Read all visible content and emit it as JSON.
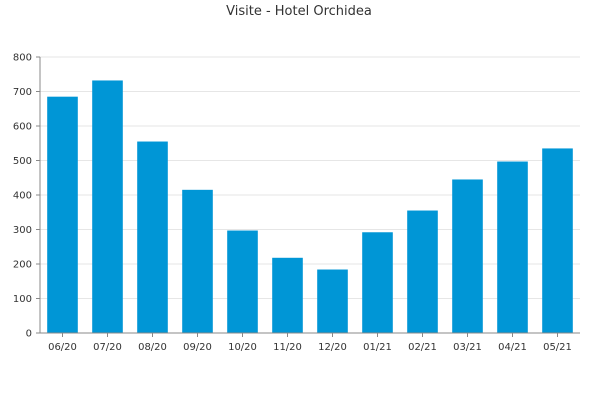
{
  "chart_data": {
    "type": "bar",
    "title": "Visite - Hotel Orchidea",
    "xlabel": "",
    "ylabel": "",
    "categories": [
      "06/20",
      "07/20",
      "08/20",
      "09/20",
      "10/20",
      "11/20",
      "12/20",
      "01/21",
      "02/21",
      "03/21",
      "04/21",
      "05/21"
    ],
    "values": [
      685,
      732,
      555,
      415,
      297,
      218,
      184,
      292,
      355,
      445,
      497,
      535
    ],
    "ylim": [
      0,
      800
    ],
    "yticks": [
      0,
      100,
      200,
      300,
      400,
      500,
      600,
      700,
      800
    ],
    "grid": true,
    "legend": "none"
  },
  "colors": {
    "bar": "#0096d6",
    "grid": "#e6e6e6",
    "axis": "#888888",
    "text": "#333333"
  }
}
